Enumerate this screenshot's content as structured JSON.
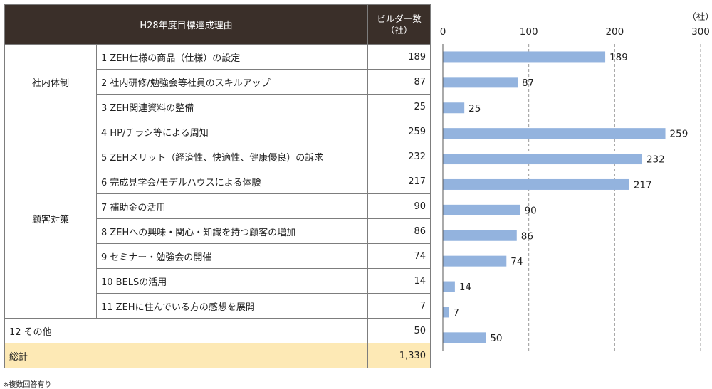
{
  "table": {
    "header": {
      "reason": "H28年度目標達成理由",
      "count_line1": "ビルダー数",
      "count_line2": "（社）"
    },
    "groups": [
      {
        "label": "社内体制",
        "start": 0,
        "span": 3
      },
      {
        "label": "顧客対策",
        "start": 3,
        "span": 8
      }
    ],
    "rows": [
      {
        "label": "1 ZEH仕様の商品（仕様）の設定",
        "value": "189"
      },
      {
        "label": "2 社内研修/勉強会等社員のスキルアップ",
        "value": "87"
      },
      {
        "label": "3 ZEH関連資料の整備",
        "value": "25"
      },
      {
        "label": "4 HP/チラシ等による周知",
        "value": "259"
      },
      {
        "label": "5 ZEHメリット（経済性、快適性、健康優良）の訴求",
        "value": "232"
      },
      {
        "label": "6 完成見学会/モデルハウスによる体験",
        "value": "217"
      },
      {
        "label": "7 補助金の活用",
        "value": "90"
      },
      {
        "label": "8 ZEHへの興味・関心・知識を持つ顧客の増加",
        "value": "86"
      },
      {
        "label": "9 セミナー・勉強会の開催",
        "value": "74"
      },
      {
        "label": "10 BELSの活用",
        "value": "14"
      },
      {
        "label": "11 ZEHに住んでいる方の感想を展開",
        "value": "7"
      }
    ],
    "other": {
      "label": "12 その他",
      "value": "50"
    },
    "total": {
      "label": "総計",
      "value": "1,330"
    }
  },
  "note": "※複数回答有り",
  "chart_data": {
    "type": "bar",
    "orientation": "horizontal",
    "categories": [
      "1 ZEH仕様の商品（仕様）の設定",
      "2 社内研修/勉強会等社員のスキルアップ",
      "3 ZEH関連資料の整備",
      "4 HP/チラシ等による周知",
      "5 ZEHメリット（経済性、快適性、健康優良）の訴求",
      "6 完成見学会/モデルハウスによる体験",
      "7 補助金の活用",
      "8 ZEHへの興味・関心・知識を持つ顧客の増加",
      "9 セミナー・勉強会の開催",
      "10 BELSの活用",
      "11 ZEHに住んでいる方の感想を展開",
      "12 その他"
    ],
    "values": [
      189,
      87,
      25,
      259,
      232,
      217,
      90,
      86,
      74,
      14,
      7,
      50
    ],
    "xlim": [
      0,
      300
    ],
    "ticks": [
      0,
      100,
      200,
      300
    ],
    "unit": "（社）",
    "grid": true,
    "bar_color": "#93b3de"
  }
}
